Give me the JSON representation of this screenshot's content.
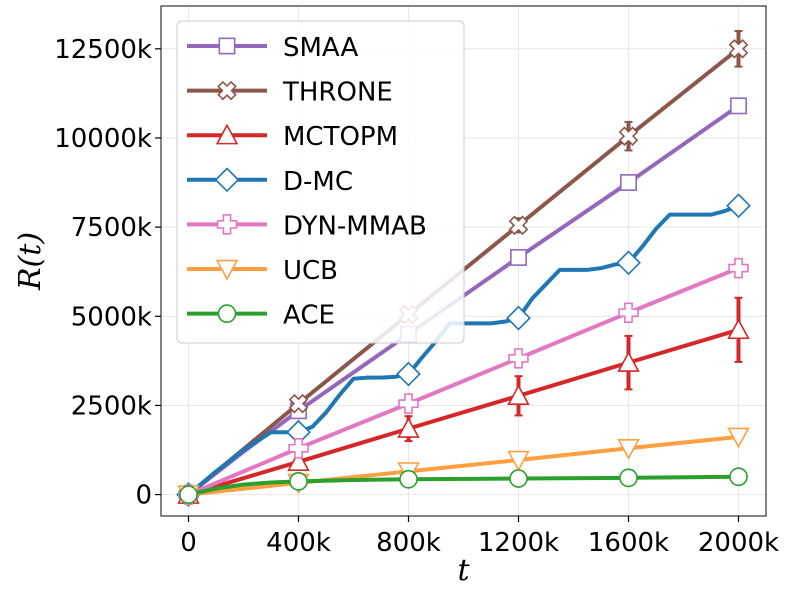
{
  "chart_data": {
    "type": "line",
    "xlabel": "t",
    "ylabel": "R(t)",
    "xlim": [
      -100000,
      2100000
    ],
    "ylim": [
      -600000,
      13700000
    ],
    "grid": true,
    "legend_position": "top-left",
    "xticks": [
      {
        "value": 0,
        "label": "0"
      },
      {
        "value": 400000,
        "label": "400k"
      },
      {
        "value": 800000,
        "label": "800k"
      },
      {
        "value": 1200000,
        "label": "1200k"
      },
      {
        "value": 1600000,
        "label": "1600k"
      },
      {
        "value": 2000000,
        "label": "2000k"
      }
    ],
    "yticks": [
      {
        "value": 0,
        "label": "0"
      },
      {
        "value": 2500000,
        "label": "2500k"
      },
      {
        "value": 5000000,
        "label": "5000k"
      },
      {
        "value": 7500000,
        "label": "7500k"
      },
      {
        "value": 10000000,
        "label": "10000k"
      },
      {
        "value": 12500000,
        "label": "12500k"
      }
    ],
    "series": [
      {
        "name": "SMAA",
        "color": "#9467bd",
        "marker": "square",
        "x": [
          0,
          100000,
          200000,
          400000,
          800000,
          1200000,
          1600000,
          2000000
        ],
        "y": [
          0,
          600000,
          1200000,
          2350000,
          4500000,
          6650000,
          8750000,
          10900000
        ],
        "marker_x": [
          0,
          400000,
          800000,
          1200000,
          1600000,
          2000000
        ],
        "marker_y": [
          0,
          2350000,
          4500000,
          6650000,
          8750000,
          10900000
        ]
      },
      {
        "name": "THRONE",
        "color": "#8c564b",
        "marker": "x",
        "x": [
          0,
          400000,
          800000,
          1200000,
          1600000,
          2000000
        ],
        "y": [
          0,
          2550000,
          5050000,
          7550000,
          10050000,
          12500000
        ],
        "marker_x": [
          0,
          400000,
          800000,
          1200000,
          1600000,
          2000000
        ],
        "marker_y": [
          0,
          2550000,
          5050000,
          7550000,
          10050000,
          12500000
        ],
        "error": [
          0,
          0,
          0,
          200000,
          400000,
          500000
        ]
      },
      {
        "name": "MCTOPM",
        "color": "#d62728",
        "marker": "triangle-up",
        "x": [
          0,
          400000,
          800000,
          1200000,
          1600000,
          2000000
        ],
        "y": [
          0,
          920000,
          1850000,
          2770000,
          3700000,
          4620000
        ],
        "marker_x": [
          0,
          400000,
          800000,
          1200000,
          1600000,
          2000000
        ],
        "marker_y": [
          0,
          920000,
          1850000,
          2770000,
          3700000,
          4620000
        ],
        "error": [
          0,
          100000,
          350000,
          550000,
          750000,
          900000
        ]
      },
      {
        "name": "D-MC",
        "color": "#1f77b4",
        "marker": "diamond",
        "x": [
          0,
          100000,
          200000,
          300000,
          400000,
          450000,
          500000,
          550000,
          600000,
          650000,
          700000,
          750000,
          800000,
          850000,
          900000,
          950000,
          1000000,
          1050000,
          1100000,
          1150000,
          1200000,
          1250000,
          1300000,
          1350000,
          1400000,
          1450000,
          1500000,
          1550000,
          1600000,
          1650000,
          1700000,
          1750000,
          1800000,
          1850000,
          1900000,
          1950000,
          2000000
        ],
        "y": [
          0,
          650000,
          1250000,
          1750000,
          1750000,
          1900000,
          2300000,
          2800000,
          3250000,
          3280000,
          3280000,
          3300000,
          3380000,
          3850000,
          4300000,
          4800000,
          4800000,
          4800000,
          4800000,
          4850000,
          4950000,
          5500000,
          5900000,
          6300000,
          6300000,
          6300000,
          6350000,
          6450000,
          6500000,
          6950000,
          7450000,
          7850000,
          7850000,
          7850000,
          7850000,
          7950000,
          8100000
        ],
        "marker_x": [
          0,
          400000,
          800000,
          1200000,
          1600000,
          2000000
        ],
        "marker_y": [
          0,
          1750000,
          3380000,
          4950000,
          6500000,
          8100000
        ]
      },
      {
        "name": "DYN-MMAB",
        "color": "#e377c2",
        "marker": "plus",
        "x": [
          0,
          400000,
          800000,
          1200000,
          1600000,
          2000000
        ],
        "y": [
          0,
          1300000,
          2550000,
          3820000,
          5100000,
          6350000
        ],
        "marker_x": [
          0,
          400000,
          800000,
          1200000,
          1600000,
          2000000
        ],
        "marker_y": [
          0,
          1300000,
          2550000,
          3820000,
          5100000,
          6350000
        ]
      },
      {
        "name": "UCB",
        "color": "#ff9f40",
        "marker": "triangle-down",
        "x": [
          0,
          400000,
          800000,
          1200000,
          1600000,
          2000000
        ],
        "y": [
          0,
          330000,
          650000,
          970000,
          1300000,
          1620000
        ],
        "marker_x": [
          0,
          400000,
          800000,
          1200000,
          1600000,
          2000000
        ],
        "marker_y": [
          0,
          330000,
          650000,
          970000,
          1300000,
          1620000
        ]
      },
      {
        "name": "ACE",
        "color": "#2ca02c",
        "marker": "circle",
        "x": [
          0,
          100000,
          200000,
          300000,
          400000,
          600000,
          800000,
          1200000,
          1600000,
          2000000
        ],
        "y": [
          0,
          170000,
          280000,
          340000,
          370000,
          410000,
          430000,
          450000,
          470000,
          500000
        ],
        "marker_x": [
          0,
          400000,
          800000,
          1200000,
          1600000,
          2000000
        ],
        "marker_y": [
          0,
          370000,
          430000,
          450000,
          470000,
          500000
        ]
      }
    ]
  }
}
